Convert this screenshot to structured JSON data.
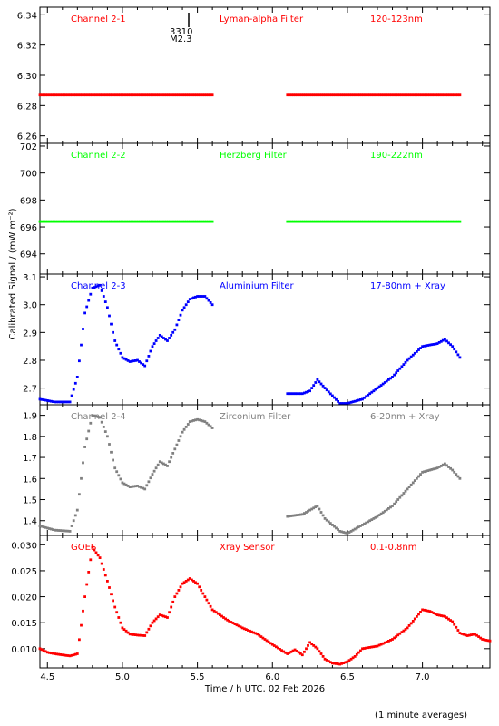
{
  "figure": {
    "ylabel": "Calibrated Signal / (mW m⁻²)",
    "xlabel": "Time / h UTC, 02 Feb 2026",
    "footnote": "(1 minute averages)",
    "event_id": "3310",
    "event_class": "M2.3"
  },
  "colors": {
    "red": "#ff0000",
    "green": "#00ff00",
    "blue": "#0000ff",
    "gray": "#808080",
    "axis": "#000000"
  },
  "chart_data": [
    {
      "type": "scatter",
      "channel": "Channel 2-1",
      "filter": "Lyman-alpha Filter",
      "band": "120-123nm",
      "color": "red",
      "xlim": [
        4.45,
        7.45
      ],
      "ylim": [
        6.255,
        6.345
      ],
      "x_ticks": [
        4.5,
        5.0,
        5.5,
        6.0,
        6.5,
        7.0
      ],
      "y_ticks": [
        "6.26",
        "6.28",
        "6.30",
        "6.32",
        "6.34"
      ],
      "segments": [
        {
          "x": [
            4.45,
            5.6
          ],
          "y": [
            6.287,
            6.287
          ]
        },
        {
          "x": [
            6.1,
            7.25
          ],
          "y": [
            6.287,
            6.287
          ]
        }
      ]
    },
    {
      "type": "scatter",
      "channel": "Channel 2-2",
      "filter": "Herzberg Filter",
      "band": "190-222nm",
      "color": "green",
      "xlim": [
        4.45,
        7.45
      ],
      "ylim": [
        692.5,
        702.2
      ],
      "x_ticks": [
        4.5,
        5.0,
        5.5,
        6.0,
        6.5,
        7.0
      ],
      "y_ticks": [
        "694",
        "696",
        "698",
        "700",
        "702"
      ],
      "segments": [
        {
          "x": [
            4.45,
            5.6
          ],
          "y": [
            696.4,
            696.4
          ]
        },
        {
          "x": [
            6.1,
            7.25
          ],
          "y": [
            696.4,
            696.4
          ]
        }
      ]
    },
    {
      "type": "scatter",
      "channel": "Channel 2-3",
      "filter": "Aluminium Filter",
      "band": "17-80nm + Xray",
      "color": "blue",
      "xlim": [
        4.45,
        7.45
      ],
      "ylim": [
        2.64,
        3.11
      ],
      "x_ticks": [
        4.5,
        5.0,
        5.5,
        6.0,
        6.5,
        7.0
      ],
      "y_ticks": [
        "2.7",
        "2.8",
        "2.9",
        "3.0",
        "3.1"
      ],
      "segments": [
        {
          "x": [
            4.45,
            4.55,
            4.65,
            4.7,
            4.75,
            4.8,
            4.85,
            4.9,
            4.95,
            5.0,
            5.05,
            5.1,
            5.15,
            5.2,
            5.25,
            5.3,
            5.35,
            5.4,
            5.45,
            5.5,
            5.55,
            5.6
          ],
          "y": [
            2.66,
            2.65,
            2.65,
            2.74,
            2.97,
            3.06,
            3.07,
            2.99,
            2.87,
            2.81,
            2.795,
            2.8,
            2.78,
            2.85,
            2.89,
            2.87,
            2.91,
            2.98,
            3.02,
            3.03,
            3.03,
            3.0
          ]
        },
        {
          "x": [
            6.1,
            6.2,
            6.25,
            6.3,
            6.35,
            6.45,
            6.5,
            6.6,
            6.7,
            6.8,
            6.9,
            7.0,
            7.05,
            7.1,
            7.15,
            7.2,
            7.25
          ],
          "y": [
            2.68,
            2.68,
            2.69,
            2.73,
            2.7,
            2.645,
            2.645,
            2.66,
            2.7,
            2.74,
            2.8,
            2.85,
            2.855,
            2.86,
            2.875,
            2.85,
            2.81
          ]
        }
      ]
    },
    {
      "type": "scatter",
      "channel": "Channel 2-4",
      "filter": "Zirconium Filter",
      "band": "6-20nm + Xray",
      "color": "gray",
      "xlim": [
        4.45,
        7.45
      ],
      "ylim": [
        1.33,
        1.95
      ],
      "x_ticks": [
        4.5,
        5.0,
        5.5,
        6.0,
        6.5,
        7.0
      ],
      "y_ticks": [
        "1.4",
        "1.5",
        "1.6",
        "1.7",
        "1.8",
        "1.9"
      ],
      "segments": [
        {
          "x": [
            4.45,
            4.55,
            4.65,
            4.7,
            4.75,
            4.8,
            4.85,
            4.9,
            4.95,
            5.0,
            5.05,
            5.1,
            5.15,
            5.2,
            5.25,
            5.3,
            5.35,
            5.4,
            5.45,
            5.5,
            5.55,
            5.6
          ],
          "y": [
            1.375,
            1.355,
            1.35,
            1.45,
            1.75,
            1.9,
            1.89,
            1.8,
            1.65,
            1.58,
            1.56,
            1.565,
            1.55,
            1.62,
            1.68,
            1.66,
            1.74,
            1.82,
            1.87,
            1.88,
            1.87,
            1.84
          ]
        },
        {
          "x": [
            6.1,
            6.2,
            6.25,
            6.3,
            6.35,
            6.45,
            6.5,
            6.6,
            6.7,
            6.8,
            6.9,
            7.0,
            7.05,
            7.1,
            7.15,
            7.2,
            7.25
          ],
          "y": [
            1.42,
            1.43,
            1.45,
            1.47,
            1.41,
            1.35,
            1.34,
            1.38,
            1.42,
            1.47,
            1.55,
            1.63,
            1.64,
            1.65,
            1.67,
            1.64,
            1.6
          ]
        }
      ]
    },
    {
      "type": "scatter",
      "channel": "GOES",
      "filter": "Xray Sensor",
      "band": "0.1-0.8nm",
      "color": "red",
      "xlim": [
        4.45,
        7.45
      ],
      "ylim": [
        0.0063,
        0.0318
      ],
      "x_ticks": [
        4.5,
        5.0,
        5.5,
        6.0,
        6.5,
        7.0
      ],
      "y_ticks": [
        "0.010",
        "0.015",
        "0.020",
        "0.025",
        "0.030"
      ],
      "segments": [
        {
          "x": [
            4.45,
            4.5,
            4.55,
            4.6,
            4.65,
            4.7,
            4.75,
            4.8,
            4.85,
            4.9,
            4.95,
            5.0,
            5.05,
            5.1,
            5.15,
            5.2,
            5.25,
            5.3,
            5.35,
            5.4,
            5.45,
            5.5,
            5.55,
            5.6,
            5.7,
            5.8,
            5.9,
            6.0,
            6.1,
            6.15,
            6.2,
            6.25,
            6.3,
            6.35,
            6.4,
            6.45,
            6.5,
            6.55,
            6.6,
            6.7,
            6.8,
            6.9,
            7.0,
            7.05,
            7.1,
            7.15,
            7.2,
            7.25,
            7.3,
            7.35,
            7.4,
            7.45
          ],
          "y": [
            0.01,
            0.0093,
            0.009,
            0.0088,
            0.0086,
            0.009,
            0.02,
            0.0295,
            0.0275,
            0.023,
            0.018,
            0.014,
            0.0128,
            0.0126,
            0.0125,
            0.015,
            0.0165,
            0.016,
            0.02,
            0.0225,
            0.0235,
            0.0225,
            0.02,
            0.0175,
            0.0155,
            0.014,
            0.0128,
            0.0108,
            0.009,
            0.0098,
            0.0088,
            0.0112,
            0.01,
            0.008,
            0.0072,
            0.007,
            0.0075,
            0.0085,
            0.01,
            0.0105,
            0.0118,
            0.014,
            0.0175,
            0.0172,
            0.0165,
            0.0162,
            0.0152,
            0.013,
            0.0125,
            0.0128,
            0.0118,
            0.0115
          ]
        }
      ]
    }
  ]
}
